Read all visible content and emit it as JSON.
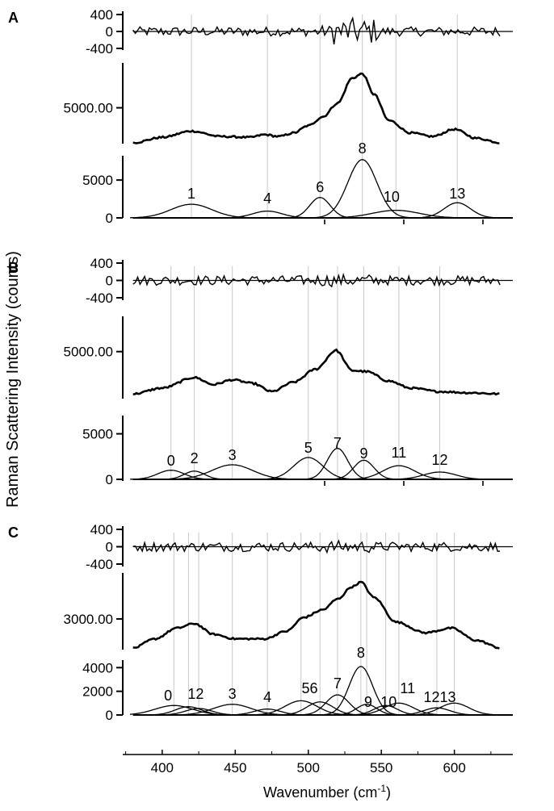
{
  "figure": {
    "ylabel": "Raman Scattering Intensity (counts)",
    "xlabel_main": "Wavenumber (cm",
    "xlabel_sup": "-1",
    "xlabel_close": ")"
  },
  "chart_data": [
    {
      "type": "line",
      "panel": "A",
      "subplot": "residual",
      "yticks": [
        "400",
        "0",
        "-400"
      ],
      "ylim": [
        -400,
        400
      ],
      "xlim": [
        373,
        640
      ]
    },
    {
      "type": "line",
      "panel": "A",
      "subplot": "spectrum",
      "yticks": [
        "5000.00"
      ],
      "ylim": [
        1000,
        10000
      ],
      "xlim": [
        373,
        640
      ],
      "x": [
        380,
        400,
        420,
        440,
        460,
        470,
        480,
        490,
        500,
        510,
        520,
        530,
        537,
        545,
        555,
        570,
        585,
        600,
        615,
        632
      ],
      "y": [
        1100,
        1700,
        2400,
        1800,
        1700,
        2000,
        1800,
        2200,
        3000,
        4000,
        5500,
        8300,
        8800,
        6500,
        3600,
        2200,
        1800,
        2600,
        1600,
        1100
      ]
    },
    {
      "type": "line",
      "panel": "A",
      "subplot": "components",
      "yticks": [
        "5000",
        "0"
      ],
      "ylim": [
        0,
        8000
      ],
      "xlim": [
        373,
        640
      ],
      "annotations": [
        "1",
        "4",
        "6",
        "8",
        "10",
        "13"
      ],
      "series": [
        {
          "center": 420,
          "amp": 1800,
          "width": 14
        },
        {
          "center": 472,
          "amp": 900,
          "width": 10
        },
        {
          "center": 508,
          "amp": 2700,
          "width": 7
        },
        {
          "center": 537,
          "amp": 7700,
          "width": 10
        },
        {
          "center": 560,
          "amp": 1000,
          "width": 16
        },
        {
          "center": 602,
          "amp": 2000,
          "width": 9
        }
      ]
    },
    {
      "type": "line",
      "panel": "B",
      "subplot": "residual",
      "yticks": [
        "400",
        "0",
        "-400"
      ],
      "ylim": [
        -400,
        400
      ],
      "xlim": [
        373,
        640
      ]
    },
    {
      "type": "line",
      "panel": "B",
      "subplot": "spectrum",
      "yticks": [
        "5000.00"
      ],
      "ylim": [
        1000,
        8000
      ],
      "xlim": [
        373,
        640
      ],
      "x": [
        380,
        400,
        422,
        435,
        448,
        462,
        475,
        490,
        505,
        519,
        530,
        540,
        555,
        570,
        590,
        610,
        632
      ],
      "y": [
        1400,
        1900,
        2800,
        2200,
        2600,
        2300,
        1600,
        2400,
        3500,
        5100,
        3400,
        3300,
        2500,
        1900,
        1600,
        1500,
        1400
      ]
    },
    {
      "type": "line",
      "panel": "B",
      "subplot": "components",
      "yticks": [
        "5000",
        "0"
      ],
      "ylim": [
        0,
        7000
      ],
      "xlim": [
        373,
        640
      ],
      "annotations": [
        "0",
        "2",
        "3",
        "5",
        "7",
        "9",
        "11",
        "12"
      ],
      "series": [
        {
          "center": 406,
          "amp": 1000,
          "width": 9
        },
        {
          "center": 422,
          "amp": 900,
          "width": 7
        },
        {
          "center": 448,
          "amp": 1600,
          "width": 14
        },
        {
          "center": 500,
          "amp": 2400,
          "width": 10
        },
        {
          "center": 520,
          "amp": 3400,
          "width": 7
        },
        {
          "center": 538,
          "amp": 2100,
          "width": 7
        },
        {
          "center": 562,
          "amp": 1500,
          "width": 11
        },
        {
          "center": 590,
          "amp": 800,
          "width": 11
        }
      ]
    },
    {
      "type": "line",
      "panel": "C",
      "subplot": "residual",
      "yticks": [
        "400",
        "0",
        "-400"
      ],
      "ylim": [
        -400,
        400
      ],
      "xlim": [
        373,
        640
      ]
    },
    {
      "type": "line",
      "panel": "C",
      "subplot": "spectrum",
      "yticks": [
        "3000.00"
      ],
      "ylim": [
        1000,
        6000
      ],
      "xlim": [
        373,
        640
      ],
      "x": [
        380,
        395,
        410,
        422,
        435,
        450,
        470,
        485,
        497,
        510,
        520,
        530,
        536,
        545,
        560,
        580,
        598,
        615,
        632
      ],
      "y": [
        1100,
        1700,
        2400,
        2700,
        2000,
        1700,
        1700,
        2200,
        3100,
        3600,
        4300,
        5100,
        5400,
        4400,
        2800,
        2100,
        2400,
        1600,
        1100
      ]
    },
    {
      "type": "line",
      "panel": "C",
      "subplot": "components",
      "yticks": [
        "4000",
        "2000",
        "0"
      ],
      "ylim": [
        0,
        4500
      ],
      "xlim": [
        373,
        640
      ],
      "annotations": [
        "0",
        "12",
        "3",
        "4",
        "56",
        "7",
        "8",
        "9",
        "10",
        "11",
        "1213"
      ],
      "series": [
        {
          "center": 408,
          "amp": 800,
          "width": 13
        },
        {
          "center": 418,
          "amp": 700,
          "width": 9
        },
        {
          "center": 425,
          "amp": 550,
          "width": 9
        },
        {
          "center": 448,
          "amp": 900,
          "width": 13
        },
        {
          "center": 472,
          "amp": 500,
          "width": 9
        },
        {
          "center": 495,
          "amp": 1200,
          "width": 11
        },
        {
          "center": 508,
          "amp": 1100,
          "width": 9
        },
        {
          "center": 520,
          "amp": 1700,
          "width": 8
        },
        {
          "center": 536,
          "amp": 4100,
          "width": 8
        },
        {
          "center": 540,
          "amp": 900,
          "width": 7
        },
        {
          "center": 553,
          "amp": 800,
          "width": 8
        },
        {
          "center": 562,
          "amp": 1000,
          "width": 10
        },
        {
          "center": 588,
          "amp": 600,
          "width": 9
        },
        {
          "center": 600,
          "amp": 1000,
          "width": 10
        }
      ]
    }
  ],
  "panels": [
    {
      "letter": "A"
    },
    {
      "letter": "B"
    },
    {
      "letter": "C"
    }
  ],
  "xaxis": {
    "ticks": [
      {
        "value": 400,
        "label": "400"
      },
      {
        "value": 450,
        "label": "450"
      },
      {
        "value": 500,
        "label": "500"
      },
      {
        "value": 550,
        "label": "550"
      },
      {
        "value": 600,
        "label": "600"
      }
    ],
    "xlim": [
      373,
      640
    ]
  }
}
